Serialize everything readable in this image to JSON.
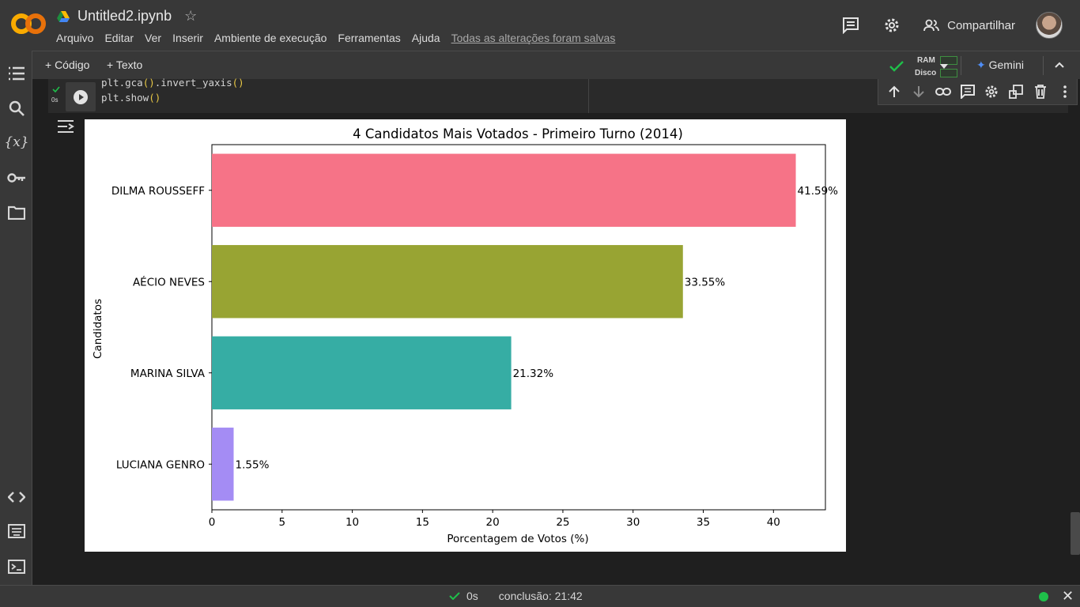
{
  "app": {
    "notebook_title": "Untitled2.ipynb",
    "menu": [
      "Arquivo",
      "Editar",
      "Ver",
      "Inserir",
      "Ambiente de execução",
      "Ferramentas",
      "Ajuda"
    ],
    "saved_status": "Todas as alterações foram salvas",
    "share_label": "Compartilhar"
  },
  "toolbar": {
    "add_code": "+ Código",
    "add_text": "+ Texto",
    "ram_label": "RAM",
    "disk_label": "Disco",
    "gemini_label": "Gemini"
  },
  "cell": {
    "exec_time": "0s",
    "code_line1_a": "plt.gca",
    "code_line1_b": "().",
    "code_line1_c": "invert_yaxis",
    "code_line1_d": "()",
    "code_line2_a": "plt.show",
    "code_line2_b": "()"
  },
  "status": {
    "elapsed": "0s",
    "completed": "conclusão: 21:42"
  },
  "chart_data": {
    "type": "bar",
    "orientation": "horizontal",
    "title": "4 Candidatos Mais Votados - Primeiro Turno (2014)",
    "xlabel": "Porcentagem de Votos (%)",
    "ylabel": "Candidatos",
    "categories": [
      "DILMA ROUSSEFF",
      "AÉCIO NEVES",
      "MARINA SILVA",
      "LUCIANA GENRO"
    ],
    "values": [
      41.59,
      33.55,
      21.32,
      1.55
    ],
    "data_labels": [
      "41.59%",
      "33.55%",
      "21.32%",
      "1.55%"
    ],
    "colors": [
      "#f67387",
      "#98a433",
      "#36ada4",
      "#a48cf4"
    ],
    "xlim": [
      0,
      43.7
    ],
    "xticks": [
      "0",
      "5",
      "10",
      "15",
      "20",
      "25",
      "30",
      "35",
      "40"
    ],
    "grid": false
  }
}
